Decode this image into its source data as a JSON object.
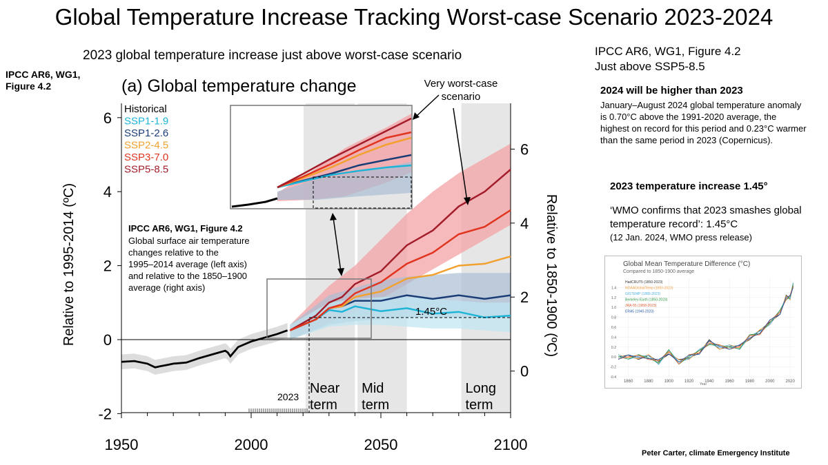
{
  "title": "Global Temperature Increase Tracking Worst-case Scenario 2023-2024",
  "subtitle": "2023 global temperature increase just above worst-case scenario",
  "left_reference": "IPCC AR6, WG1,\nFigure 4.2",
  "right_reference": "IPCC AR6, WG1, Figure 4.2\nJust above SSP5-8.5",
  "note_2024": {
    "title": "2024 will be higher than 2023",
    "body": "January–August 2024 global temperature anomaly is 0.70°C above the 1991-2020 average, the highest on record for this period and 0.23°C warmer than the same period in 2023 (Copernicus)."
  },
  "note_2023": {
    "title": "2023 temperature increase 1.45°",
    "body": "‘WMO confirms that 2023 smashes global temperature record’: 1.45°C",
    "source": "(12 Jan. 2024, WMO press release)"
  },
  "credit": "Peter Carter, climate Emergency Institute",
  "colors": {
    "historical": "#000000",
    "ssp119": "#1eb4d7",
    "ssp126": "#1a3d78",
    "ssp245": "#f2a12e",
    "ssp370": "#e0341f",
    "ssp585": "#a31d2a",
    "band_red": "#f4a3a6",
    "band_blue": "#a9bdd3",
    "band_cyan": "#bfe6f2",
    "period_shade": "#e6e6e6"
  },
  "chart_data": [
    {
      "type": "line",
      "title": "(a) Global temperature change",
      "ylabel": "Relative to 1995-2014 (ºC)",
      "y2label": "Relative to 1850-1900 (ºC)",
      "xlim": [
        1950,
        2100
      ],
      "ylim": [
        -2,
        6.5
      ],
      "y2_offset": 0.85,
      "xticks": [
        1950,
        2000,
        2050,
        2100
      ],
      "yticks": [
        -2,
        0,
        2,
        4,
        6
      ],
      "y2ticks": [
        0,
        2,
        4,
        6
      ],
      "legend": [
        "Historical",
        "SSP1-1.9",
        "SSP1-2.6",
        "SSP2-4.5",
        "SSP3-7.0",
        "SSP5-8.5"
      ],
      "legend_position": "top-left",
      "periods": [
        {
          "label": "Near term",
          "x": [
            2021,
            2040
          ]
        },
        {
          "label": "Mid term",
          "x": [
            2041,
            2060
          ]
        },
        {
          "label": "Long term",
          "x": [
            2081,
            2100
          ]
        }
      ],
      "annotations": {
        "worst_case": "Very worst-case scenario",
        "value_label": "1.45°C",
        "year_label": "2023",
        "caption_title": "IPCC AR6, WG1, Figure 4.2",
        "caption_body": "Global surface air temperature changes relative to the 1995–2014 average (left axis) and relative to the  1850–1900 average (right axis)"
      },
      "historical": {
        "x": [
          1950,
          1955,
          1960,
          1963,
          1965,
          1968,
          1970,
          1975,
          1980,
          1985,
          1990,
          1991,
          1992,
          1995,
          2000,
          2005,
          2010,
          2014
        ],
        "y": [
          -0.6,
          -0.58,
          -0.65,
          -0.75,
          -0.72,
          -0.68,
          -0.65,
          -0.62,
          -0.5,
          -0.4,
          -0.3,
          -0.35,
          -0.45,
          -0.2,
          -0.05,
          0.05,
          0.15,
          0.25
        ]
      },
      "series": [
        {
          "name": "SSP1-1.9",
          "x": [
            2015,
            2020,
            2025,
            2030,
            2035,
            2040,
            2050,
            2060,
            2070,
            2080,
            2090,
            2100
          ],
          "y": [
            0.25,
            0.4,
            0.6,
            0.75,
            0.8,
            0.85,
            0.82,
            0.8,
            0.75,
            0.7,
            0.65,
            0.6
          ]
        },
        {
          "name": "SSP1-2.6",
          "x": [
            2015,
            2020,
            2025,
            2030,
            2035,
            2040,
            2050,
            2060,
            2070,
            2080,
            2090,
            2100
          ],
          "y": [
            0.25,
            0.4,
            0.6,
            0.8,
            0.95,
            1.0,
            1.1,
            1.15,
            1.15,
            1.15,
            1.15,
            1.15
          ]
        },
        {
          "name": "SSP2-4.5",
          "x": [
            2015,
            2020,
            2025,
            2030,
            2035,
            2040,
            2050,
            2060,
            2070,
            2080,
            2090,
            2100
          ],
          "y": [
            0.25,
            0.4,
            0.6,
            0.8,
            0.95,
            1.1,
            1.35,
            1.6,
            1.8,
            1.95,
            2.1,
            2.2
          ]
        },
        {
          "name": "SSP3-7.0",
          "x": [
            2015,
            2020,
            2025,
            2030,
            2035,
            2040,
            2050,
            2060,
            2070,
            2080,
            2090,
            2100
          ],
          "y": [
            0.25,
            0.4,
            0.6,
            0.8,
            1.0,
            1.2,
            1.6,
            2.0,
            2.4,
            2.8,
            3.1,
            3.45
          ]
        },
        {
          "name": "SSP5-8.5",
          "x": [
            2015,
            2020,
            2025,
            2030,
            2035,
            2040,
            2050,
            2060,
            2070,
            2080,
            2090,
            2100
          ],
          "y": [
            0.25,
            0.45,
            0.7,
            0.95,
            1.2,
            1.45,
            1.9,
            2.5,
            3.0,
            3.55,
            4.05,
            4.55
          ]
        }
      ],
      "bands": [
        {
          "name": "SSP5-8.5 range",
          "x": [
            2015,
            2030,
            2040,
            2050,
            2060,
            2070,
            2080,
            2090,
            2100
          ],
          "low": [
            0.0,
            0.45,
            0.75,
            1.1,
            1.5,
            1.9,
            2.3,
            2.7,
            3.1
          ],
          "high": [
            0.4,
            1.45,
            2.0,
            2.7,
            3.4,
            4.0,
            4.5,
            4.9,
            5.3
          ]
        },
        {
          "name": "SSP1-2.6 range",
          "x": [
            2015,
            2030,
            2040,
            2050,
            2060,
            2070,
            2080,
            2090,
            2100
          ],
          "low": [
            0.0,
            0.4,
            0.5,
            0.55,
            0.6,
            0.6,
            0.6,
            0.6,
            0.6
          ],
          "high": [
            0.4,
            1.2,
            1.4,
            1.6,
            1.7,
            1.75,
            1.8,
            1.8,
            1.8
          ]
        },
        {
          "name": "SSP1-1.9 range",
          "x": [
            2015,
            2030,
            2040,
            2050,
            2060,
            2070,
            2080,
            2090,
            2100
          ],
          "low": [
            0.0,
            0.35,
            0.4,
            0.4,
            0.35,
            0.3,
            0.3,
            0.25,
            0.2
          ],
          "high": [
            0.4,
            1.0,
            1.1,
            1.15,
            1.15,
            1.1,
            1.05,
            1.0,
            1.0
          ]
        }
      ]
    },
    {
      "type": "line",
      "title": "Global Mean Temperature Difference (°C)",
      "subtitle": "Compared to 1850-1900 average",
      "xlabel": "Year",
      "xlim": [
        1850,
        2024
      ],
      "ylim": [
        -0.4,
        1.6
      ],
      "xticks": [
        1860,
        1880,
        1900,
        1920,
        1940,
        1960,
        1980,
        2000,
        2020
      ],
      "yticks": [
        -0.4,
        -0.2,
        0.0,
        0.2,
        0.4,
        0.6,
        0.8,
        1.0,
        1.2,
        1.4
      ],
      "legend": [
        "HadCRUT5 (1850-2023)",
        "NOAAGlobalTemp (1850-2023)",
        "GISTEMP (1880-2023)",
        "Berkeley Earth (1850-2023)",
        "JRA-55 (1958-2023)",
        "ERA5 (1940-2023)"
      ],
      "legend_position": "top-left",
      "series": [
        {
          "name": "HadCRUT5 (1850-2023)",
          "x": [
            1850,
            1860,
            1870,
            1880,
            1890,
            1900,
            1910,
            1920,
            1930,
            1940,
            1950,
            1960,
            1970,
            1980,
            1990,
            2000,
            2010,
            2016,
            2020,
            2023
          ],
          "y": [
            0.0,
            0.0,
            0.0,
            0.0,
            -0.1,
            0.1,
            -0.1,
            0.0,
            0.1,
            0.3,
            0.2,
            0.2,
            0.2,
            0.4,
            0.5,
            0.7,
            0.9,
            1.2,
            1.2,
            1.45
          ]
        }
      ]
    }
  ]
}
